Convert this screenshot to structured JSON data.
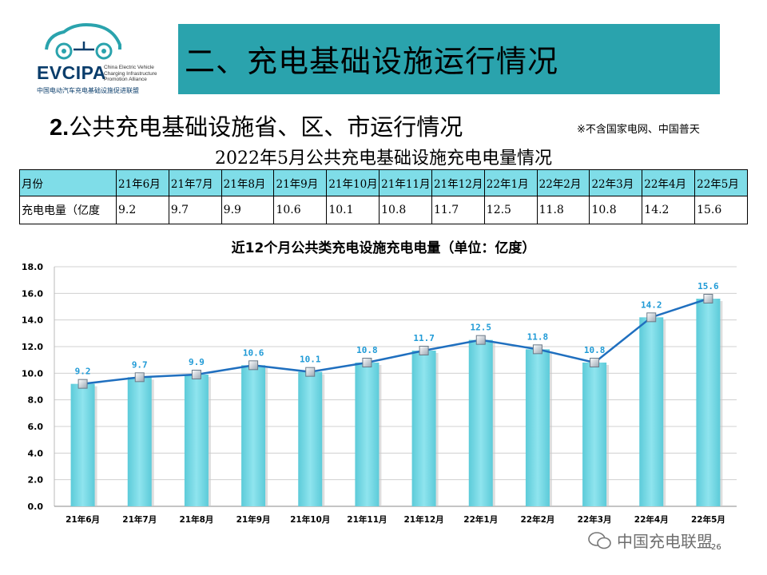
{
  "logo": {
    "main": "EVCIPA",
    "en_lines": [
      "China Electric Vehicle",
      "Charging Infrastructure",
      "Promotion Alliance"
    ],
    "cn": "中国电动汽车充电基础设施促进联盟"
  },
  "banner": {
    "title": "二、充电基础设施运行情况"
  },
  "subtitle": {
    "num": "2.",
    "text": "公共充电基础设施省、区、市运行情况"
  },
  "note": "※不含国家电网、中国普天",
  "table": {
    "title": "2022年5月公共充电基础设施充电电量情况",
    "row_header_1": "月份",
    "row_header_2": "充电电量（亿度",
    "months": [
      "21年6月",
      "21年7月",
      "21年8月",
      "21年9月",
      "21年10月",
      "21年11月",
      "21年12月",
      "22年1月",
      "22年2月",
      "22年3月",
      "22年4月",
      "22年5月"
    ],
    "values": [
      "9.2",
      "9.7",
      "9.9",
      "10.6",
      "10.1",
      "10.8",
      "11.7",
      "12.5",
      "11.8",
      "10.8",
      "14.2",
      "15.6"
    ]
  },
  "chart_data": {
    "type": "bar",
    "title": "近12个月公共类充电设施充电电量（单位：亿度）",
    "categories": [
      "21年6月",
      "21年7月",
      "21年8月",
      "21年9月",
      "21年10月",
      "21年11月",
      "21年12月",
      "22年1月",
      "22年2月",
      "22年3月",
      "22年4月",
      "22年5月"
    ],
    "series": [
      {
        "type": "bar",
        "values": [
          9.2,
          9.7,
          9.9,
          10.6,
          10.1,
          10.8,
          11.7,
          12.5,
          11.8,
          10.8,
          14.2,
          15.6
        ]
      },
      {
        "type": "line",
        "values": [
          9.2,
          9.7,
          9.9,
          10.6,
          10.1,
          10.8,
          11.7,
          12.5,
          11.8,
          10.8,
          14.2,
          15.6
        ]
      }
    ],
    "data_labels": [
      "9.2",
      "9.7",
      "9.9",
      "10.6",
      "10.1",
      "10.8",
      "11.7",
      "12.5",
      "11.8",
      "10.8",
      "14.2",
      "15.6"
    ],
    "ylim": [
      0,
      18
    ],
    "yticks": [
      "0.0",
      "2.0",
      "4.0",
      "6.0",
      "8.0",
      "10.0",
      "12.0",
      "14.0",
      "16.0",
      "18.0"
    ],
    "grid": true,
    "legend": "none",
    "colors": {
      "bar": "#6fd6e3",
      "line": "#1f6fbf",
      "label": "#1f9ad6",
      "grid": "#d0d0d0"
    }
  },
  "watermark": "中国充电联盟",
  "page_number": "26"
}
